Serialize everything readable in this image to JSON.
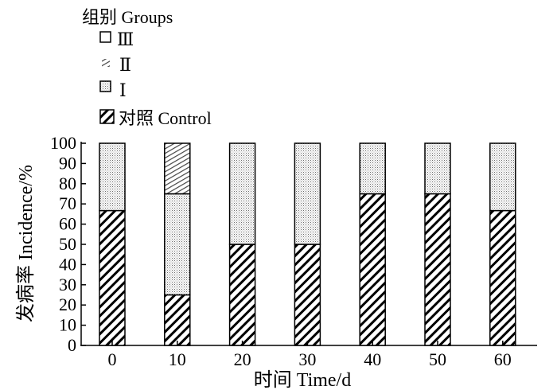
{
  "chart_data": {
    "type": "bar",
    "stacked": true,
    "categories": [
      "0",
      "10",
      "20",
      "30",
      "40",
      "50",
      "60"
    ],
    "series": [
      {
        "name": "对照 Control",
        "pattern": "wide-diagonal",
        "values": [
          66.7,
          25,
          50,
          50,
          75,
          75,
          66.7
        ]
      },
      {
        "name": "Ⅰ",
        "pattern": "dots",
        "values": [
          33.3,
          50,
          50,
          50,
          25,
          25,
          33.3
        ]
      },
      {
        "name": "Ⅱ",
        "pattern": "fine-diagonal",
        "values": [
          0,
          25,
          0,
          0,
          0,
          0,
          0
        ]
      },
      {
        "name": "Ⅲ",
        "pattern": "plain",
        "values": [
          0,
          0,
          0,
          0,
          0,
          0,
          0
        ]
      }
    ],
    "legend_title": "组别 Groups",
    "legend_order": [
      "Ⅲ",
      "Ⅱ",
      "Ⅰ",
      "对照 Control"
    ],
    "legend_position": "top-left",
    "xlabel": "时间 Time/d",
    "ylabel": "发病率 Incidence/%",
    "ylim": [
      0,
      100
    ],
    "yticks": [
      "0",
      "10",
      "20",
      "30",
      "40",
      "50",
      "60",
      "70",
      "80",
      "90",
      "100"
    ],
    "grid": false
  }
}
